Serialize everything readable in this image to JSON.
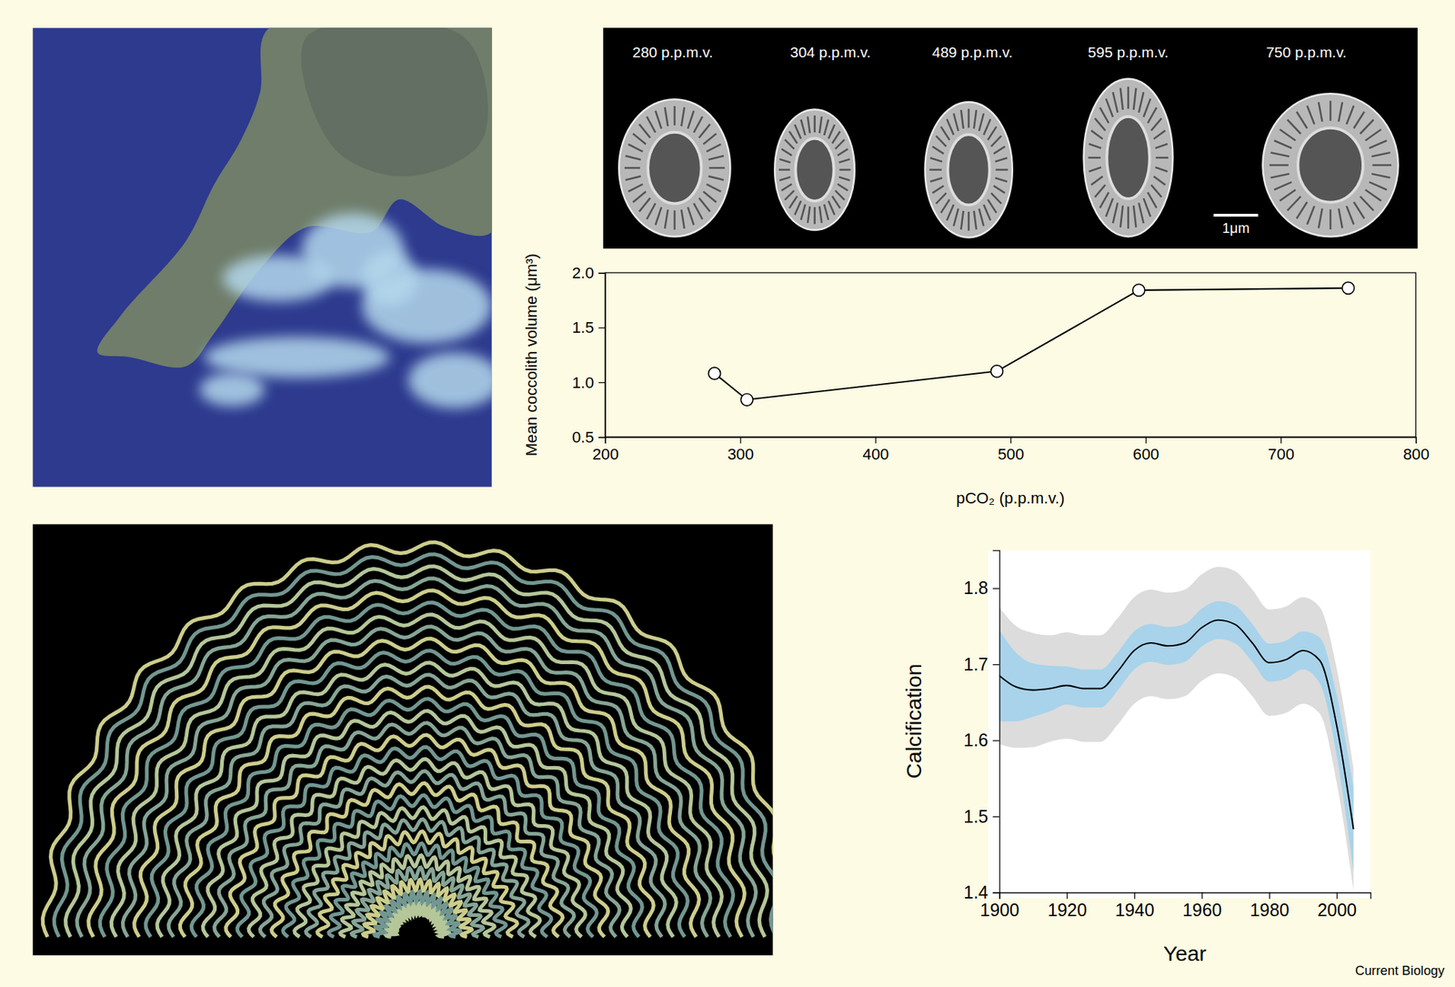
{
  "figure": {
    "image_labels": [
      "280 p.p.m.v.",
      "304 p.p.m.v.",
      "489 p.p.m.v.",
      "595 p.p.m.v.",
      "750 p.p.m.v."
    ],
    "scale_bar": "1μm",
    "credit": "Current Biology"
  },
  "chart_data": [
    {
      "type": "line",
      "x": [
        281,
        305,
        490,
        595,
        750
      ],
      "values": [
        1.08,
        0.84,
        1.1,
        1.84,
        1.86
      ],
      "color": "#000000",
      "marker": "circle",
      "xlim": [
        200,
        800
      ],
      "xticks": [
        200,
        300,
        400,
        500,
        600,
        700,
        800
      ],
      "ylim": [
        0.5,
        2
      ],
      "yticks": [
        0.5,
        {
          "value": 1,
          "label": "1.0"
        },
        1.5,
        {
          "value": 2,
          "label": "2.0"
        }
      ],
      "x_label": "pCO₂ (p.p.m.v.)",
      "y_label": "Mean coccolith volume (μm³)"
    },
    {
      "type": "line",
      "x": [
        1900,
        1905,
        1910,
        1915,
        1920,
        1925,
        1930,
        1935,
        1940,
        1945,
        1950,
        1955,
        1960,
        1965,
        1970,
        1975,
        1980,
        1985,
        1990,
        1995,
        2000,
        2005
      ],
      "values": [
        1.685,
        1.67,
        1.666,
        1.668,
        1.672,
        1.668,
        1.668,
        1.69,
        1.718,
        1.728,
        1.724,
        1.728,
        1.748,
        1.758,
        1.752,
        1.728,
        1.702,
        1.706,
        1.718,
        1.705,
        1.62,
        1.483
      ],
      "color": "#000000",
      "bands": [
        {
          "color": "#dcdcdc",
          "upper": [
            1.775,
            1.75,
            1.741,
            1.738,
            1.742,
            1.738,
            1.738,
            1.76,
            1.788,
            1.798,
            1.794,
            1.798,
            1.818,
            1.828,
            1.822,
            1.798,
            1.772,
            1.776,
            1.788,
            1.775,
            1.695,
            1.563
          ],
          "lower": [
            1.595,
            1.59,
            1.591,
            1.598,
            1.602,
            1.598,
            1.598,
            1.62,
            1.648,
            1.658,
            1.654,
            1.658,
            1.678,
            1.688,
            1.682,
            1.658,
            1.632,
            1.636,
            1.648,
            1.635,
            1.545,
            1.403
          ]
        },
        {
          "color": "#a8d3ea",
          "upper": [
            1.745,
            1.715,
            1.701,
            1.698,
            1.697,
            1.693,
            1.693,
            1.715,
            1.743,
            1.753,
            1.749,
            1.753,
            1.773,
            1.783,
            1.777,
            1.753,
            1.727,
            1.731,
            1.743,
            1.735,
            1.66,
            1.538
          ],
          "lower": [
            1.625,
            1.625,
            1.631,
            1.638,
            1.647,
            1.643,
            1.643,
            1.665,
            1.693,
            1.703,
            1.699,
            1.703,
            1.723,
            1.733,
            1.727,
            1.703,
            1.677,
            1.681,
            1.693,
            1.675,
            1.58,
            1.428
          ]
        }
      ],
      "xlim": [
        1900,
        2010
      ],
      "xticks": [
        1900,
        1920,
        1940,
        1960,
        1980,
        2000
      ],
      "ylim": [
        1.4,
        1.85
      ],
      "yticks": [
        1.4,
        1.5,
        1.6,
        1.7,
        1.8
      ],
      "x_label": "Year",
      "y_label": "Calcification"
    }
  ]
}
